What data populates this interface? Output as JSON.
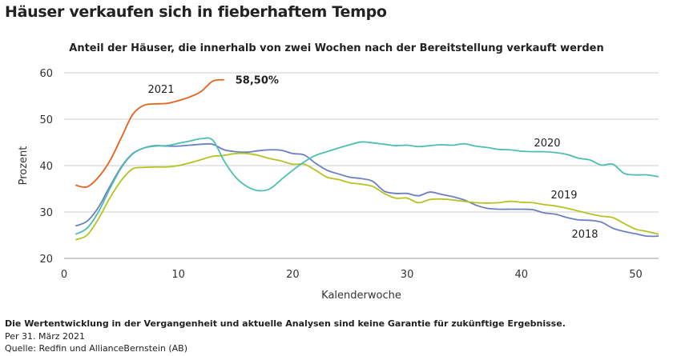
{
  "title": "Häuser verkaufen sich in fieberhaftem Tempo",
  "footnotes": {
    "disclaimer": "Die Wertentwicklung in der Vergangenheit und aktuelle Analysen sind keine Garantie für zukünftige Ergebnisse.",
    "date": "Per 31. März 2021",
    "source": "Quelle: Redfin und AllianceBernstein (AB)"
  },
  "chart_data": {
    "type": "line",
    "title": "Anteil der Häuser, die innerhalb von zwei Wochen nach der Bereitstellung verkauft werden",
    "xlabel": "Kalenderwoche",
    "ylabel": "Prozent",
    "xlim": [
      0,
      52
    ],
    "ylim": [
      20,
      60
    ],
    "xticks": [
      "0",
      "10",
      "20",
      "30",
      "40",
      "50"
    ],
    "yticks": [
      "20",
      "30",
      "40",
      "50",
      "60"
    ],
    "grid": "horizontal",
    "annotation": "58,50%",
    "series": [
      {
        "name": "2018",
        "color": "#6b80c2",
        "values": [
          27,
          28,
          31,
          35.5,
          39.7,
          42.6,
          43.8,
          44.3,
          44.2,
          44.2,
          44.4,
          44.6,
          44.6,
          43.4,
          43,
          42.9,
          43.2,
          43.4,
          43.3,
          42.6,
          42.3,
          40.5,
          39,
          38.2,
          37.5,
          37.2,
          36.6,
          34.5,
          34,
          34,
          33.5,
          34.3,
          33.8,
          33.3,
          32.6,
          31.5,
          30.8,
          30.6,
          30.6,
          30.6,
          30.5,
          29.8,
          29.5,
          28.8,
          28.3,
          28.2,
          27.8,
          26.5,
          25.8,
          25.3,
          24.8,
          24.8
        ]
      },
      {
        "name": "2019",
        "color": "#b4c31f",
        "values": [
          24,
          25,
          28.5,
          33,
          36.8,
          39.3,
          39.6,
          39.7,
          39.7,
          40,
          40.6,
          41.3,
          42,
          42.2,
          42.6,
          42.6,
          42.2,
          41.5,
          41,
          40.3,
          40.3,
          39,
          37.5,
          37,
          36.3,
          36,
          35.5,
          34,
          33,
          33,
          32,
          32.7,
          32.8,
          32.6,
          32.3,
          32,
          31.9,
          32,
          32.3,
          32.1,
          32,
          31.6,
          31.3,
          30.8,
          30.2,
          29.6,
          29.1,
          28.8,
          27.5,
          26.3,
          25.8,
          25.2
        ]
      },
      {
        "name": "2020",
        "color": "#4cbfb1",
        "values": [
          25.2,
          26.5,
          30,
          35,
          39.5,
          42.5,
          43.8,
          44.2,
          44.3,
          44.8,
          45.3,
          45.8,
          45.5,
          41,
          37.5,
          35.5,
          34.6,
          35,
          37,
          39,
          40.8,
          42.2,
          43,
          43.8,
          44.5,
          45.1,
          44.9,
          44.6,
          44.3,
          44.4,
          44.1,
          44.3,
          44.5,
          44.4,
          44.7,
          44.2,
          43.9,
          43.5,
          43.4,
          43.1,
          43,
          43,
          42.8,
          42.4,
          41.6,
          41.2,
          40.1,
          40.3,
          38.3,
          38,
          38,
          37.6
        ]
      },
      {
        "name": "2021",
        "color": "#e8601c",
        "values": [
          35.8,
          35.4,
          37.5,
          41,
          46,
          51,
          53,
          53.3,
          53.4,
          54,
          54.8,
          56,
          58.2,
          58.5
        ]
      }
    ]
  }
}
